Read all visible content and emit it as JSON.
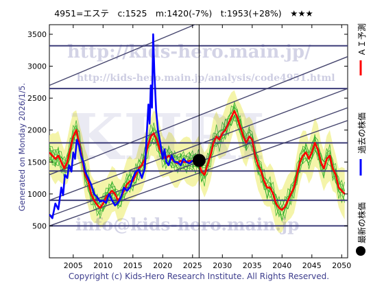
{
  "header": {
    "title": "4951=エステ　c:1525　m:1420(-7%)　t:1953(+28%)　★★★"
  },
  "watermarks": {
    "url": "http://kids-hero.main.jp/",
    "analysis_url": "http://kids-hero.main.jp/analysis/code4951.html",
    "logo": "KHRI",
    "email": "info@kids-hero.main.jp"
  },
  "side_note": "Generated on Monday 2026/1/5.",
  "footer": "Copyright (c) Kids-Hero Research Institute. All Rights Reserved.",
  "legend": {
    "ai": "ＡＩ予測",
    "past": "過去の株価",
    "latest": "最新の株価"
  },
  "colors": {
    "ai_line": "#ff0000",
    "past_line": "#0000ff",
    "band_fill": "#f3f3a0",
    "ensemble": "#22aa22",
    "grid": "#3c3c78",
    "channel": "#46466e"
  },
  "chart_data": {
    "type": "line",
    "title": "4951=エステ　c:1525　m:1420(-7%)　t:1953(+28%)　★★★",
    "xlabel": "",
    "ylabel": "",
    "xlim": [
      2001,
      2051
    ],
    "ylim": [
      0,
      3650
    ],
    "x_ticks": [
      2005,
      2010,
      2015,
      2020,
      2025,
      2030,
      2035,
      2040,
      2045,
      2050
    ],
    "y_ticks": [
      500,
      1000,
      1500,
      2000,
      2500,
      3000,
      3500
    ],
    "horizontal_levels": [
      500,
      900,
      1360,
      1800,
      2650,
      3320
    ],
    "vertical_marker_x": 2026.1,
    "latest_point": {
      "x": 2026.1,
      "y": 1525
    },
    "channel_lines": [
      {
        "x1": 2001,
        "y1": 2700,
        "x2": 2051,
        "y2": 4650
      },
      {
        "x1": 2001,
        "y1": 1300,
        "x2": 2051,
        "y2": 3150
      },
      {
        "x1": 2001,
        "y1": 900,
        "x2": 2051,
        "y2": 2650
      },
      {
        "x1": 2001,
        "y1": 650,
        "x2": 2051,
        "y2": 2350
      },
      {
        "x1": 2001,
        "y1": 500,
        "x2": 2051,
        "y2": 2150
      }
    ],
    "series": [
      {
        "name": "過去の株価",
        "color": "#0000ff",
        "points": [
          [
            2001.0,
            680
          ],
          [
            2001.5,
            620
          ],
          [
            2002.0,
            850
          ],
          [
            2002.5,
            760
          ],
          [
            2003.0,
            1100
          ],
          [
            2003.3,
            980
          ],
          [
            2003.6,
            1300
          ],
          [
            2004.0,
            1250
          ],
          [
            2004.3,
            1450
          ],
          [
            2004.7,
            1350
          ],
          [
            2005.0,
            1650
          ],
          [
            2005.3,
            1550
          ],
          [
            2005.6,
            1850
          ],
          [
            2006.0,
            1750
          ],
          [
            2006.3,
            1600
          ],
          [
            2006.7,
            1500
          ],
          [
            2007.0,
            1350
          ],
          [
            2007.5,
            1250
          ],
          [
            2008.0,
            1150
          ],
          [
            2008.5,
            1000
          ],
          [
            2009.0,
            950
          ],
          [
            2009.5,
            880
          ],
          [
            2010.0,
            900
          ],
          [
            2010.5,
            860
          ],
          [
            2011.0,
            1000
          ],
          [
            2011.5,
            900
          ],
          [
            2012.0,
            820
          ],
          [
            2012.5,
            860
          ],
          [
            2013.0,
            950
          ],
          [
            2013.5,
            1100
          ],
          [
            2014.0,
            1050
          ],
          [
            2014.5,
            1100
          ],
          [
            2015.0,
            1250
          ],
          [
            2015.5,
            1350
          ],
          [
            2016.0,
            1380
          ],
          [
            2016.5,
            1250
          ],
          [
            2017.0,
            1400
          ],
          [
            2017.3,
            1900
          ],
          [
            2017.6,
            2400
          ],
          [
            2017.8,
            2100
          ],
          [
            2018.0,
            2700
          ],
          [
            2018.2,
            2350
          ],
          [
            2018.4,
            3500
          ],
          [
            2018.6,
            2900
          ],
          [
            2018.9,
            2300
          ],
          [
            2019.2,
            2000
          ],
          [
            2019.6,
            1800
          ],
          [
            2020.0,
            1550
          ],
          [
            2020.3,
            1700
          ],
          [
            2020.6,
            1500
          ],
          [
            2021.0,
            1450
          ],
          [
            2021.5,
            1600
          ],
          [
            2022.0,
            1500
          ],
          [
            2022.5,
            1500
          ],
          [
            2023.0,
            1450
          ],
          [
            2023.5,
            1550
          ],
          [
            2024.0,
            1500
          ],
          [
            2024.5,
            1480
          ],
          [
            2025.0,
            1520
          ],
          [
            2025.5,
            1510
          ],
          [
            2026.0,
            1525
          ]
        ]
      },
      {
        "name": "ＡＩ予測",
        "color": "#ff0000",
        "points": [
          [
            2001.0,
            1650
          ],
          [
            2001.5,
            1600
          ],
          [
            2002.0,
            1550
          ],
          [
            2002.5,
            1600
          ],
          [
            2003.0,
            1500
          ],
          [
            2003.5,
            1400
          ],
          [
            2004.0,
            1500
          ],
          [
            2004.5,
            1700
          ],
          [
            2005.0,
            1900
          ],
          [
            2005.5,
            2000
          ],
          [
            2006.0,
            1800
          ],
          [
            2006.5,
            1550
          ],
          [
            2007.0,
            1300
          ],
          [
            2007.5,
            1200
          ],
          [
            2008.0,
            1000
          ],
          [
            2008.5,
            900
          ],
          [
            2009.0,
            830
          ],
          [
            2009.5,
            780
          ],
          [
            2010.0,
            850
          ],
          [
            2010.5,
            950
          ],
          [
            2011.0,
            1000
          ],
          [
            2011.5,
            1050
          ],
          [
            2012.0,
            1000
          ],
          [
            2012.5,
            900
          ],
          [
            2013.0,
            950
          ],
          [
            2013.5,
            1050
          ],
          [
            2014.0,
            1150
          ],
          [
            2014.5,
            1200
          ],
          [
            2015.0,
            1200
          ],
          [
            2015.5,
            1300
          ],
          [
            2016.0,
            1400
          ],
          [
            2016.5,
            1450
          ],
          [
            2017.0,
            1550
          ],
          [
            2017.5,
            1750
          ],
          [
            2018.0,
            1900
          ],
          [
            2018.5,
            1950
          ],
          [
            2019.0,
            1850
          ],
          [
            2019.5,
            1700
          ],
          [
            2020.0,
            1600
          ],
          [
            2020.5,
            1550
          ],
          [
            2021.0,
            1600
          ],
          [
            2021.5,
            1550
          ],
          [
            2022.0,
            1500
          ],
          [
            2022.5,
            1480
          ],
          [
            2023.0,
            1520
          ],
          [
            2023.5,
            1500
          ],
          [
            2024.0,
            1500
          ],
          [
            2024.5,
            1520
          ],
          [
            2025.0,
            1510
          ],
          [
            2025.5,
            1500
          ],
          [
            2026.0,
            1520
          ],
          [
            2026.5,
            1350
          ],
          [
            2027.0,
            1300
          ],
          [
            2027.5,
            1450
          ],
          [
            2028.0,
            1600
          ],
          [
            2028.5,
            1800
          ],
          [
            2029.0,
            1900
          ],
          [
            2029.5,
            1850
          ],
          [
            2030.0,
            1950
          ],
          [
            2030.5,
            2000
          ],
          [
            2031.0,
            2100
          ],
          [
            2031.5,
            2200
          ],
          [
            2032.0,
            2300
          ],
          [
            2032.5,
            2200
          ],
          [
            2033.0,
            2050
          ],
          [
            2033.5,
            1900
          ],
          [
            2034.0,
            1800
          ],
          [
            2034.5,
            1900
          ],
          [
            2035.0,
            1850
          ],
          [
            2035.5,
            1600
          ],
          [
            2036.0,
            1450
          ],
          [
            2036.5,
            1350
          ],
          [
            2037.0,
            1200
          ],
          [
            2037.5,
            1100
          ],
          [
            2038.0,
            1100
          ],
          [
            2038.5,
            1000
          ],
          [
            2039.0,
            850
          ],
          [
            2039.5,
            780
          ],
          [
            2040.0,
            750
          ],
          [
            2040.5,
            800
          ],
          [
            2041.0,
            900
          ],
          [
            2041.5,
            1000
          ],
          [
            2042.0,
            1100
          ],
          [
            2042.5,
            1300
          ],
          [
            2043.0,
            1500
          ],
          [
            2043.5,
            1600
          ],
          [
            2044.0,
            1650
          ],
          [
            2044.5,
            1550
          ],
          [
            2045.0,
            1650
          ],
          [
            2045.5,
            1800
          ],
          [
            2046.0,
            1700
          ],
          [
            2046.5,
            1500
          ],
          [
            2047.0,
            1400
          ],
          [
            2047.5,
            1550
          ],
          [
            2048.0,
            1600
          ],
          [
            2048.5,
            1400
          ],
          [
            2049.0,
            1300
          ],
          [
            2049.5,
            1100
          ],
          [
            2050.0,
            1050
          ],
          [
            2050.5,
            1000
          ]
        ]
      }
    ]
  }
}
